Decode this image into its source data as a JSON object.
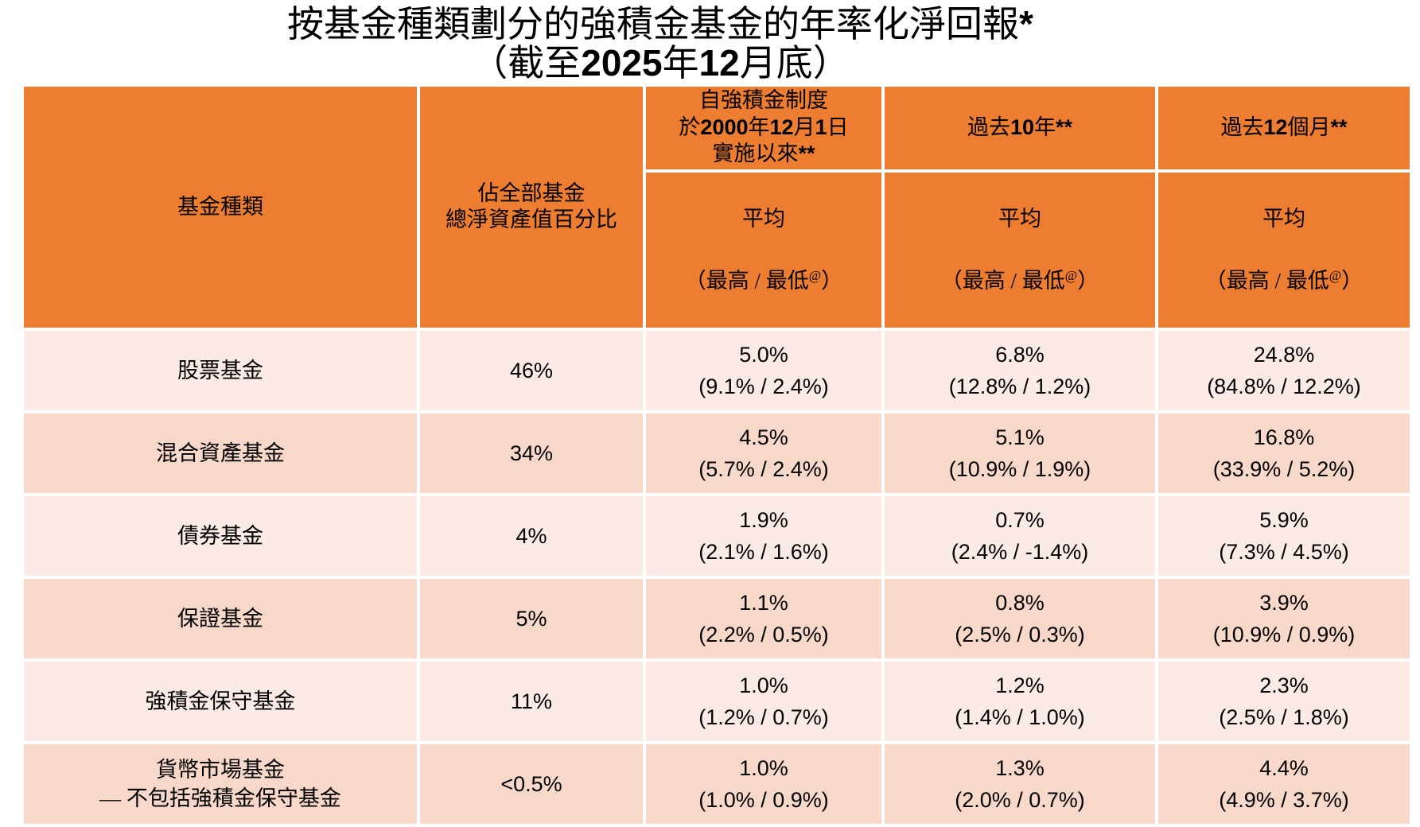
{
  "title": {
    "line1": "按基金種類劃分的強積金基金的年率化淨回報*",
    "line2": "（截至2025年12月底）"
  },
  "colors": {
    "header_bg": "#ED7D31",
    "row_light": "#FBEAE5",
    "row_dark": "#F8D8C9",
    "text": "#000000",
    "background": "#FFFFFF"
  },
  "table": {
    "columns": {
      "fund_type": "基金種類",
      "nav_share": "佔全部基金\n總淨資產值百分比",
      "since_inception": "自強積金制度\n於2000年12月1日\n實施以來**",
      "past_10_years": "過去10年**",
      "past_12_months": "過去12個月**"
    },
    "subheader": {
      "average": "平均",
      "range": "（最高 / 最低@）"
    },
    "rows": [
      {
        "fund": "股票基金",
        "share": "46%",
        "since_avg": "5.0%",
        "since_range": "(9.1% / 2.4%)",
        "y10_avg": "6.8%",
        "y10_range": "(12.8% / 1.2%)",
        "m12_avg": "24.8%",
        "m12_range": "(84.8% / 12.2%)"
      },
      {
        "fund": "混合資產基金",
        "share": "34%",
        "since_avg": "4.5%",
        "since_range": "(5.7% / 2.4%)",
        "y10_avg": "5.1%",
        "y10_range": "(10.9% / 1.9%)",
        "m12_avg": "16.8%",
        "m12_range": "(33.9% / 5.2%)"
      },
      {
        "fund": "債券基金",
        "share": "4%",
        "since_avg": "1.9%",
        "since_range": "(2.1% / 1.6%)",
        "y10_avg": "0.7%",
        "y10_range": "(2.4% / -1.4%)",
        "m12_avg": "5.9%",
        "m12_range": "(7.3% / 4.5%)"
      },
      {
        "fund": "保證基金",
        "share": "5%",
        "since_avg": "1.1%",
        "since_range": "(2.2% / 0.5%)",
        "y10_avg": "0.8%",
        "y10_range": "(2.5% / 0.3%)",
        "m12_avg": "3.9%",
        "m12_range": "(10.9% / 0.9%)"
      },
      {
        "fund": "強積金保守基金",
        "share": "11%",
        "since_avg": "1.0%",
        "since_range": "(1.2% / 0.7%)",
        "y10_avg": "1.2%",
        "y10_range": "(1.4% / 1.0%)",
        "m12_avg": "2.3%",
        "m12_range": "(2.5% / 1.8%)"
      },
      {
        "fund": "貨幣市場基金\n— 不包括強積金保守基金",
        "share": "<0.5%",
        "since_avg": "1.0%",
        "since_range": "(1.0% / 0.9%)",
        "y10_avg": "1.3%",
        "y10_range": "(2.0% / 0.7%)",
        "m12_avg": "4.4%",
        "m12_range": "(4.9% / 3.7%)"
      }
    ]
  }
}
